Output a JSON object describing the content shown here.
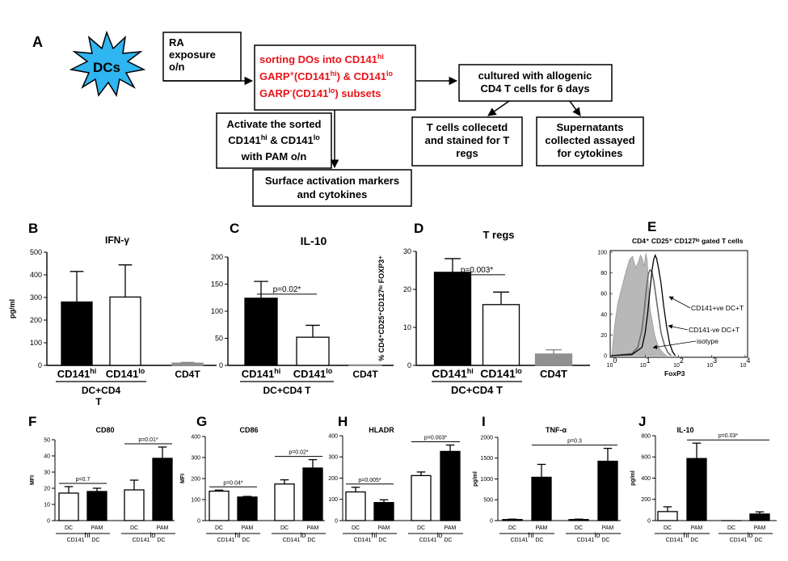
{
  "flowchart": {
    "panel_letter": "A",
    "star_label": "DCs",
    "box_ra": [
      "RA",
      "exposure",
      "o/n"
    ],
    "box_sort": [
      {
        "parts": [
          {
            "t": "sorting DOs into CD141"
          },
          {
            "t": "hi",
            "sup": true
          }
        ]
      },
      {
        "parts": [
          {
            "t": "GARP"
          },
          {
            "t": "+",
            "sup": true
          },
          {
            "t": "(CD141"
          },
          {
            "t": "hi",
            "sup": true
          },
          {
            "t": ") & CD141"
          },
          {
            "t": "lo",
            "sup": true
          }
        ]
      },
      {
        "parts": [
          {
            "t": "GARP"
          },
          {
            "t": "-",
            "sup": true
          },
          {
            "t": "(CD141"
          },
          {
            "t": "lo",
            "sup": true
          },
          {
            "t": ") subsets"
          }
        ]
      }
    ],
    "box_culture": [
      "cultured with allogenic",
      "CD4 T cells  for 6 days"
    ],
    "box_activate": [
      {
        "parts": [
          {
            "t": "Activate the sorted"
          }
        ]
      },
      {
        "parts": [
          {
            "t": "CD141"
          },
          {
            "t": "hi",
            "sup": true
          },
          {
            "t": " & CD141"
          },
          {
            "t": "lo",
            "sup": true
          }
        ]
      },
      {
        "parts": [
          {
            "t": "with PAM o/n"
          }
        ]
      }
    ],
    "box_tcells": [
      "T cells collecetd",
      "and stained for T",
      "regs"
    ],
    "box_super": [
      "Supernatants",
      "collected assayed",
      "for cytokines"
    ],
    "box_surface": [
      "Surface activation markers",
      "and cytokines"
    ],
    "colors": {
      "red_text": "#e8141b",
      "star": "#2fb5ef"
    }
  },
  "top_labels": {
    "dc_cd4": "DC+CD4",
    "t_wrap": "T",
    "dc_cd4_t": "DC+CD4 T",
    "cd141": "CD141",
    "hi": "hi",
    "lo": "lo",
    "cd4t": "CD4T",
    "pval_c": "p=0.02*",
    "pval_d": "p=0.003*"
  },
  "facs": {
    "letter": "E",
    "title": "CD4⁺ CD25⁺ CD127ˡᵒ gated T cells",
    "xlabel": "FoxP3",
    "y_ticks": [
      "0",
      "20",
      "40",
      "60",
      "80",
      "100"
    ],
    "x_ticks": [
      {
        "b": "10",
        "e": "0"
      },
      {
        "b": "10",
        "e": "1"
      },
      {
        "b": "10",
        "e": "2"
      },
      {
        "b": "10",
        "e": "3"
      },
      {
        "b": "10",
        "e": "4"
      }
    ],
    "legend": [
      "CD141+ve DC+T",
      "CD141-ve DC+T",
      "isotype"
    ]
  },
  "bottom_labels": {
    "dc": "DC",
    "pam": "PAM",
    "cd141": "CD141",
    "hi": "hi",
    "lo": "lo",
    "dc_suffix": " DC"
  },
  "chart_data": [
    {
      "type": "bar",
      "panel": "B",
      "title": "IFN-γ",
      "ylabel": "pg/ml",
      "ylim": [
        0,
        500
      ],
      "yticks": [
        0,
        100,
        200,
        300,
        400,
        500
      ],
      "categories": [
        "CD141hi",
        "CD141lo",
        "CD4T"
      ],
      "values": [
        280,
        302,
        10
      ],
      "errors": [
        135,
        142,
        3
      ],
      "fills": [
        "#000000",
        "#ffffff",
        "#909090"
      ]
    },
    {
      "type": "bar",
      "panel": "C",
      "title": "IL-10",
      "ylabel": "",
      "ylim": [
        0,
        200
      ],
      "yticks": [
        0,
        50,
        100,
        150,
        200
      ],
      "categories": [
        "CD141hi",
        "CD141lo",
        "CD4T"
      ],
      "values": [
        124,
        52,
        1
      ],
      "errors": [
        31,
        22,
        0
      ],
      "fills": [
        "#000000",
        "#ffffff",
        "#909090"
      ],
      "annotation": {
        "text": "p=0.02*",
        "between": [
          0,
          1
        ]
      }
    },
    {
      "type": "bar",
      "panel": "D",
      "title": "T regs",
      "ylabel": "% CD4⁺CD25⁺CD127ˡᵒ FOXP3⁺",
      "ylim": [
        0,
        30
      ],
      "yticks": [
        0,
        10,
        20,
        30
      ],
      "categories": [
        "CD141hi",
        "CD141lo",
        "CD4T"
      ],
      "values": [
        24.5,
        16,
        3
      ],
      "errors": [
        3.6,
        3.3,
        1.1
      ],
      "fills": [
        "#000000",
        "#ffffff",
        "#909090"
      ],
      "annotation": {
        "text": "p=0.003*",
        "between": [
          0,
          1
        ]
      }
    },
    {
      "type": "histogram",
      "panel": "E",
      "title": "CD4⁺ CD25⁺ CD127ˡᵒ gated T cells",
      "xlabel": "FoxP3",
      "xscale": "log",
      "xlim": [
        1,
        10000
      ],
      "ylim": [
        0,
        100
      ],
      "series": [
        {
          "name": "isotype",
          "style": "filled grey",
          "x": [
            1.0,
            1.2,
            1.5,
            2.0,
            2.6,
            3.4,
            4.2,
            5.2,
            6.2,
            7.2,
            8.2,
            9.3,
            10.5,
            11.5,
            12.8,
            14,
            16,
            18,
            20,
            23,
            26,
            30,
            36,
            45
          ],
          "y": [
            0,
            28,
            50,
            66,
            80,
            93,
            96,
            85,
            90,
            97,
            94,
            86,
            99,
            92,
            62,
            45,
            35,
            25,
            18,
            12,
            8,
            5,
            2,
            0
          ]
        },
        {
          "name": "CD141-ve DC+T",
          "style": "dark grey line",
          "x": [
            1.0,
            4.0,
            6.0,
            8.0,
            9.5,
            11,
            12.5,
            14,
            16,
            18,
            21,
            25,
            30,
            38,
            48,
            60
          ],
          "y": [
            0,
            2,
            8,
            25,
            45,
            66,
            79,
            83,
            81,
            73,
            58,
            40,
            22,
            10,
            3,
            0
          ]
        },
        {
          "name": "CD141+ve DC+T",
          "style": "black line",
          "x": [
            1.0,
            4.0,
            8.0,
            10,
            12,
            14,
            16,
            18,
            20,
            22,
            25,
            30,
            36,
            44,
            54,
            66,
            80
          ],
          "y": [
            0,
            1,
            8,
            22,
            42,
            64,
            82,
            93,
            97,
            94,
            85,
            70,
            48,
            28,
            12,
            4,
            0
          ]
        }
      ]
    },
    {
      "type": "bar",
      "panel": "F",
      "title": "CD80",
      "ylabel": "MFI",
      "ylim": [
        0,
        50
      ],
      "yticks": [
        0,
        10,
        20,
        30,
        40,
        50
      ],
      "categories": [
        "DC",
        "PAM",
        "DC",
        "PAM"
      ],
      "groups": [
        "CD141hi DC",
        "CD141lo DC"
      ],
      "values": [
        17,
        18,
        19,
        38.5
      ],
      "errors": [
        4,
        2,
        6,
        7
      ],
      "fills": [
        "#ffffff",
        "#000000",
        "#ffffff",
        "#000000"
      ],
      "annotations": [
        {
          "text": "p=0.7",
          "between": [
            0,
            1
          ]
        },
        {
          "text": "p=0.01*",
          "between": [
            2,
            3
          ]
        }
      ]
    },
    {
      "type": "bar",
      "panel": "G",
      "title": "CD86",
      "ylabel": "MFI",
      "ylim": [
        0,
        400
      ],
      "yticks": [
        0,
        100,
        200,
        300,
        400
      ],
      "categories": [
        "DC",
        "PAM",
        "DC",
        "PAM"
      ],
      "groups": [
        "CD141hi DC",
        "CD141lo DC"
      ],
      "values": [
        140,
        112,
        174,
        250
      ],
      "errors": [
        5,
        3,
        20,
        40
      ],
      "fills": [
        "#ffffff",
        "#000000",
        "#ffffff",
        "#000000"
      ],
      "annotations": [
        {
          "text": "p=0.04*",
          "between": [
            0,
            1
          ]
        },
        {
          "text": "p=0.02*",
          "between": [
            2,
            3
          ]
        }
      ]
    },
    {
      "type": "bar",
      "panel": "H",
      "title": "HLADR",
      "ylabel": "MFI",
      "ylim": [
        0,
        400
      ],
      "yticks": [
        0,
        100,
        200,
        300,
        400
      ],
      "categories": [
        "DC",
        "PAM",
        "DC",
        "PAM"
      ],
      "groups": [
        "CD141hi DC",
        "CD141lo DC"
      ],
      "values": [
        135,
        85,
        212,
        326
      ],
      "errors": [
        22,
        13,
        17,
        30
      ],
      "fills": [
        "#ffffff",
        "#000000",
        "#ffffff",
        "#000000"
      ],
      "annotations": [
        {
          "text": "p=0.005*",
          "between": [
            0,
            1
          ]
        },
        {
          "text": "p=0.003*",
          "between": [
            2,
            3
          ]
        }
      ]
    },
    {
      "type": "bar",
      "panel": "I",
      "title": "TNF-α",
      "ylabel": "pg/ml",
      "ylim": [
        0,
        2000
      ],
      "yticks": [
        0,
        500,
        1000,
        1500,
        2000
      ],
      "categories": [
        "DC",
        "PAM",
        "DC",
        "PAM"
      ],
      "groups": [
        "CD141hi DC",
        "CD141lo DC"
      ],
      "values": [
        25,
        1040,
        25,
        1425
      ],
      "errors": [
        10,
        310,
        10,
        310
      ],
      "fills": [
        "#ffffff",
        "#000000",
        "#ffffff",
        "#000000"
      ],
      "annotations": [
        {
          "text": "p=0.3",
          "between": [
            1,
            3
          ]
        }
      ]
    },
    {
      "type": "bar",
      "panel": "J",
      "title": "IL-10",
      "ylabel": "pg/ml",
      "ylim": [
        0,
        800
      ],
      "yticks": [
        0,
        200,
        400,
        600,
        800
      ],
      "categories": [
        "DC",
        "PAM",
        "DC",
        "PAM"
      ],
      "groups": [
        "CD141hi DC",
        "CD141lo DC"
      ],
      "values": [
        85,
        585,
        0,
        62
      ],
      "errors": [
        45,
        145,
        0,
        20
      ],
      "fills": [
        "#ffffff",
        "#000000",
        "#ffffff",
        "#000000"
      ],
      "annotations": [
        {
          "text": "p=0.03*",
          "between": [
            1,
            3
          ]
        }
      ]
    }
  ]
}
